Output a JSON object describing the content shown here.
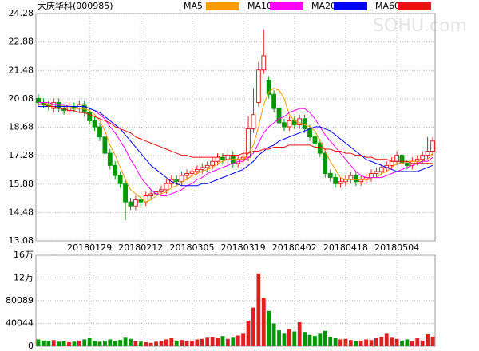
{
  "chart_data": {
    "type": "candlestick",
    "title": "大庆华科(000985)",
    "categories": [
      null,
      null,
      null,
      null,
      null,
      null,
      null,
      null,
      null,
      null,
      "20180129",
      null,
      null,
      null,
      null,
      null,
      null,
      null,
      null,
      null,
      "20180212",
      null,
      null,
      null,
      null,
      null,
      null,
      null,
      null,
      null,
      "20180305",
      null,
      null,
      null,
      null,
      null,
      null,
      null,
      null,
      null,
      "20180319",
      null,
      null,
      null,
      null,
      null,
      null,
      null,
      null,
      null,
      "20180402",
      null,
      null,
      null,
      null,
      null,
      null,
      null,
      null,
      null,
      "20180418",
      null,
      null,
      null,
      null,
      null,
      null,
      null,
      null,
      null,
      "20180504",
      null,
      null,
      null,
      null,
      null,
      null,
      null
    ],
    "open": [
      20.1,
      19.9,
      19.8,
      19.6,
      19.9,
      19.6,
      19.5,
      19.7,
      19.6,
      19.8,
      19.4,
      19.0,
      18.7,
      18.2,
      17.4,
      16.8,
      16.3,
      15.9,
      15.0,
      14.8,
      15.1,
      15.0,
      15.3,
      15.4,
      15.5,
      15.6,
      15.9,
      16.1,
      16.0,
      16.3,
      16.4,
      16.5,
      16.6,
      16.7,
      16.8,
      17.0,
      17.2,
      17.1,
      17.3,
      16.9,
      17.1,
      17.2,
      18.6,
      19.9,
      21.5,
      21.0,
      20.3,
      19.6,
      18.9,
      18.7,
      19.0,
      18.8,
      19.1,
      18.6,
      18.2,
      17.9,
      17.4,
      16.4,
      16.2,
      15.9,
      16.0,
      16.1,
      16.3,
      16.0,
      16.1,
      16.2,
      16.4,
      16.5,
      16.7,
      16.8,
      17.0,
      17.3,
      16.9,
      16.8,
      17.0,
      17.1,
      17.3,
      17.5
    ],
    "high": [
      20.3,
      20.1,
      20.0,
      20.1,
      20.1,
      19.8,
      19.9,
      19.9,
      20.0,
      20.0,
      19.6,
      19.2,
      18.9,
      18.4,
      17.6,
      17.0,
      16.5,
      16.1,
      15.2,
      15.3,
      15.3,
      15.5,
      15.6,
      15.7,
      15.8,
      16.1,
      16.3,
      16.3,
      16.5,
      16.6,
      16.7,
      16.8,
      16.9,
      17.0,
      17.2,
      17.4,
      17.4,
      17.5,
      17.5,
      17.3,
      17.4,
      19.2,
      20.6,
      21.9,
      23.5,
      21.2,
      20.5,
      19.8,
      19.1,
      19.2,
      19.2,
      19.3,
      19.3,
      18.8,
      18.4,
      18.1,
      17.6,
      16.6,
      16.4,
      16.2,
      16.3,
      16.5,
      16.5,
      16.3,
      16.4,
      16.6,
      16.7,
      16.9,
      17.0,
      17.2,
      17.5,
      17.5,
      17.1,
      17.2,
      17.3,
      17.5,
      18.2,
      18.2
    ],
    "low": [
      19.7,
      19.6,
      19.5,
      19.4,
      19.4,
      19.3,
      19.3,
      19.4,
      19.4,
      19.2,
      18.8,
      18.5,
      18.0,
      17.2,
      16.6,
      16.1,
      15.7,
      14.1,
      14.6,
      14.6,
      14.8,
      14.8,
      15.1,
      15.2,
      15.3,
      15.4,
      15.7,
      15.8,
      15.8,
      16.1,
      16.2,
      16.3,
      16.4,
      16.5,
      16.6,
      16.8,
      16.9,
      16.9,
      16.7,
      16.7,
      16.9,
      17.0,
      18.4,
      19.7,
      21.3,
      20.1,
      19.4,
      18.7,
      18.5,
      18.5,
      18.6,
      18.6,
      18.4,
      18.0,
      17.7,
      17.2,
      16.2,
      16.0,
      15.7,
      15.7,
      15.8,
      15.9,
      15.8,
      15.8,
      15.9,
      16.0,
      16.2,
      16.3,
      16.5,
      16.6,
      16.8,
      16.7,
      16.6,
      16.6,
      16.8,
      16.9,
      17.1,
      17.3
    ],
    "close": [
      19.9,
      19.8,
      19.7,
      19.9,
      19.6,
      19.5,
      19.7,
      19.6,
      19.8,
      19.4,
      19.0,
      18.7,
      18.2,
      17.4,
      16.8,
      16.3,
      15.9,
      15.0,
      14.8,
      15.1,
      15.0,
      15.3,
      15.4,
      15.5,
      15.6,
      15.9,
      16.1,
      16.0,
      16.3,
      16.4,
      16.5,
      16.6,
      16.7,
      16.8,
      17.0,
      17.2,
      17.1,
      17.3,
      16.9,
      17.1,
      17.2,
      18.6,
      19.3,
      21.5,
      22.2,
      20.3,
      19.6,
      18.9,
      18.7,
      19.0,
      18.8,
      19.1,
      18.6,
      18.2,
      17.9,
      17.4,
      16.4,
      16.2,
      15.9,
      16.0,
      16.1,
      16.3,
      16.0,
      16.1,
      16.2,
      16.4,
      16.5,
      16.7,
      16.8,
      17.0,
      17.3,
      16.9,
      16.8,
      17.0,
      17.1,
      17.3,
      17.5,
      18.0
    ],
    "volume": [
      12000,
      10000,
      9000,
      11000,
      8000,
      9000,
      7000,
      8000,
      10000,
      12000,
      14000,
      9000,
      8000,
      10000,
      12000,
      9000,
      11000,
      15000,
      13000,
      9000,
      8000,
      7000,
      6000,
      8000,
      9000,
      12000,
      14000,
      10000,
      11000,
      9000,
      10000,
      12000,
      13000,
      15000,
      16000,
      14000,
      18000,
      13000,
      15000,
      19000,
      22000,
      45000,
      68000,
      128000,
      85000,
      62000,
      40000,
      28000,
      22000,
      30000,
      26000,
      42000,
      25000,
      20000,
      18000,
      22000,
      27000,
      17000,
      14000,
      12000,
      13000,
      11000,
      9000,
      10000,
      12000,
      11000,
      14000,
      17000,
      22000,
      15000,
      13000,
      10000,
      12000,
      9000,
      14000,
      10000,
      21000,
      17000
    ],
    "up_color": "#e02020",
    "down_color": "#009900",
    "series": [
      {
        "name": "MA5",
        "color": "#ff9900",
        "values": [
          19.9,
          19.9,
          19.8,
          19.8,
          19.8,
          19.7,
          19.7,
          19.6,
          19.6,
          19.6,
          19.5,
          19.3,
          19.0,
          18.5,
          17.8,
          17.3,
          16.7,
          16.1,
          15.6,
          15.4,
          15.2,
          15.0,
          15.1,
          15.3,
          15.4,
          15.5,
          15.7,
          15.8,
          16.0,
          16.1,
          16.3,
          16.4,
          16.5,
          16.6,
          16.7,
          16.9,
          17.0,
          17.1,
          17.1,
          17.1,
          17.1,
          17.4,
          17.8,
          18.7,
          19.8,
          20.4,
          20.6,
          20.5,
          20.1,
          19.3,
          19.0,
          18.9,
          18.8,
          18.7,
          18.5,
          18.0,
          17.5,
          17.0,
          16.6,
          16.2,
          16.1,
          16.1,
          16.1,
          16.1,
          16.1,
          16.2,
          16.2,
          16.4,
          16.5,
          16.7,
          16.9,
          16.9,
          17.0,
          17.0,
          17.0,
          17.0,
          17.1,
          17.4
        ]
      },
      {
        "name": "MA10",
        "color": "#ff00ff",
        "values": [
          19.9,
          19.9,
          19.9,
          19.8,
          19.8,
          19.8,
          19.7,
          19.7,
          19.7,
          19.7,
          19.6,
          19.5,
          19.3,
          19.1,
          18.7,
          18.4,
          18.0,
          17.6,
          17.1,
          16.7,
          16.2,
          15.9,
          15.6,
          15.4,
          15.3,
          15.3,
          15.4,
          15.5,
          15.6,
          15.8,
          15.9,
          16.1,
          16.2,
          16.4,
          16.5,
          16.6,
          16.7,
          16.8,
          16.9,
          17.0,
          17.0,
          17.2,
          17.4,
          17.9,
          18.4,
          18.7,
          18.9,
          19.1,
          19.2,
          19.4,
          19.5,
          19.6,
          19.6,
          19.4,
          19.1,
          18.7,
          18.3,
          18.0,
          17.7,
          17.4,
          17.1,
          16.8,
          16.5,
          16.3,
          16.2,
          16.2,
          16.2,
          16.2,
          16.3,
          16.4,
          16.5,
          16.6,
          16.7,
          16.8,
          16.9,
          17.0,
          17.0,
          17.2
        ]
      },
      {
        "name": "MA20",
        "color": "#0000ff",
        "values": [
          19.7,
          19.7,
          19.7,
          19.7,
          19.7,
          19.7,
          19.7,
          19.7,
          19.7,
          19.7,
          19.6,
          19.5,
          19.4,
          19.2,
          19.0,
          18.8,
          18.6,
          18.3,
          18.0,
          17.7,
          17.4,
          17.1,
          16.8,
          16.6,
          16.4,
          16.2,
          16.0,
          15.9,
          15.8,
          15.8,
          15.8,
          15.8,
          15.9,
          15.9,
          16.0,
          16.1,
          16.2,
          16.3,
          16.4,
          16.5,
          16.6,
          16.8,
          17.0,
          17.3,
          17.5,
          17.7,
          17.8,
          18.0,
          18.1,
          18.2,
          18.3,
          18.4,
          18.5,
          18.6,
          18.7,
          18.7,
          18.6,
          18.5,
          18.3,
          18.1,
          17.9,
          17.7,
          17.5,
          17.3,
          17.1,
          17.0,
          16.9,
          16.8,
          16.7,
          16.6,
          16.5,
          16.5,
          16.5,
          16.5,
          16.5,
          16.6,
          16.7,
          16.8
        ]
      },
      {
        "name": "MA60",
        "color": "#ee1111",
        "values": [
          19.8,
          19.8,
          19.7,
          19.7,
          19.6,
          19.6,
          19.5,
          19.5,
          19.4,
          19.4,
          19.3,
          19.2,
          19.1,
          19.0,
          18.9,
          18.7,
          18.6,
          18.5,
          18.4,
          18.2,
          18.1,
          18.0,
          17.9,
          17.8,
          17.7,
          17.6,
          17.5,
          17.4,
          17.3,
          17.3,
          17.2,
          17.2,
          17.2,
          17.2,
          17.2,
          17.2,
          17.3,
          17.3,
          17.3,
          17.3,
          17.4,
          17.4,
          17.5,
          17.5,
          17.6,
          17.6,
          17.7,
          17.7,
          17.7,
          17.8,
          17.8,
          17.8,
          17.8,
          17.8,
          17.7,
          17.7,
          17.6,
          17.6,
          17.5,
          17.5,
          17.4,
          17.4,
          17.3,
          17.3,
          17.2,
          17.2,
          17.1,
          17.1,
          17.1,
          17.0,
          17.0,
          17.0,
          17.0,
          16.9,
          16.9,
          16.9,
          16.9,
          16.9
        ]
      }
    ],
    "ylim": [
      13.08,
      24.28
    ],
    "yticks": [
      13.08,
      14.48,
      15.88,
      17.28,
      18.68,
      20.08,
      21.48,
      22.88,
      24.28
    ],
    "volume_ylim": [
      0,
      160000
    ],
    "volume_yticks": [
      0,
      40044,
      80089,
      {
        "value": 120000,
        "label": "12万"
      },
      {
        "value": 160000,
        "label": "16万"
      }
    ],
    "grid": true
  }
}
